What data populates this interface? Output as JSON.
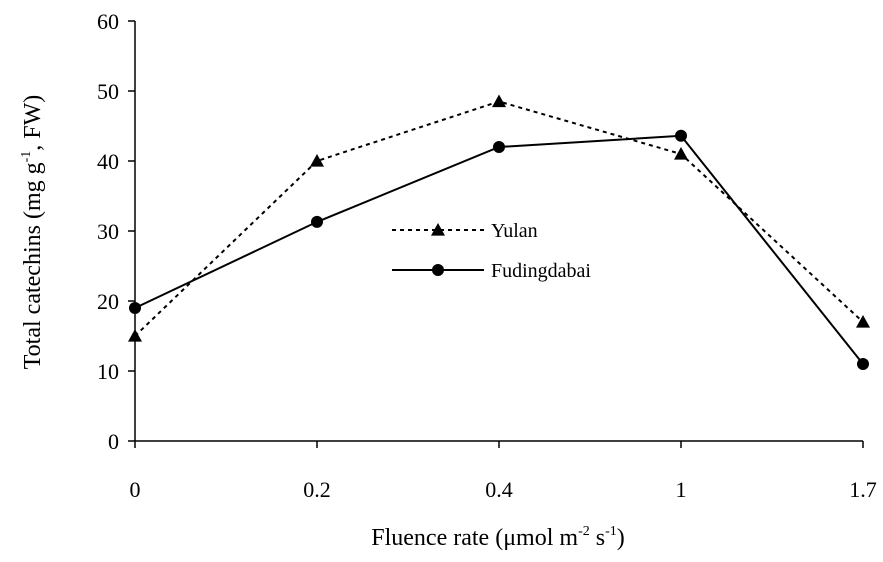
{
  "chart_data": {
    "type": "line",
    "categories": [
      "0",
      "0.2",
      "0.4",
      "1",
      "1.7"
    ],
    "xlabel": {
      "prefix": "Fluence rate (",
      "unit": "μmol m",
      "exp1": "-2",
      "mid": " s",
      "exp2": "-1",
      "suffix": ")"
    },
    "ylabel": {
      "prefix": "Total catechins (mg g",
      "exp": "-1",
      "suffix": ", FW)"
    },
    "ylim": [
      0,
      60
    ],
    "yticks": [
      "0",
      "10",
      "20",
      "30",
      "40",
      "50",
      "60"
    ],
    "grid": false,
    "legend_position": "center",
    "series": [
      {
        "name": "Yulan",
        "values": [
          15,
          40,
          48.5,
          41,
          17
        ],
        "marker": "triangle",
        "line_style": "dashed",
        "color": "#000000"
      },
      {
        "name": "Fudingdabai",
        "values": [
          19,
          31.3,
          42,
          43.6,
          11
        ],
        "marker": "circle",
        "line_style": "solid",
        "color": "#000000"
      }
    ]
  }
}
